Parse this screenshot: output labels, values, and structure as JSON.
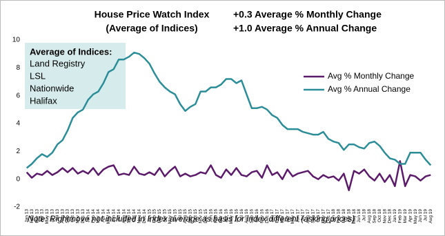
{
  "chart_data": {
    "type": "line",
    "title": "House Price Watch Index",
    "subtitle": "(Average of Indices)",
    "annotations": [
      {
        "text": "+0.3 Average % Monthly Change",
        "color": "#6a1b6e"
      },
      {
        "text": "+1.0 Average % Annual Change",
        "color": "#2b8d98"
      }
    ],
    "box": {
      "heading": "Average of Indices:",
      "items": [
        "Land Registry",
        "LSL",
        "Nationwide",
        "Halifax"
      ]
    },
    "note": "Note: Rightmove not included in Index average as basis for index different (asking prices)",
    "categories": [
      "Jan 13",
      "Feb 13",
      "Mar 13",
      "Apr 13",
      "May 13",
      "Jun 13",
      "Jul 13",
      "Aug 13",
      "Sep 13",
      "Oct 13",
      "Nov 13",
      "Dec 13",
      "Jan 14",
      "Feb 14",
      "Mar 14",
      "Apr 14",
      "May 14",
      "Jun 14",
      "Jul 14",
      "Aug 14",
      "Sep 14",
      "Oct 14",
      "Nov 14",
      "Dec 14",
      "Jan 15",
      "Feb 15",
      "Mar 15",
      "Apr 15",
      "May 15",
      "Jun 15",
      "Jul 15",
      "Aug 15",
      "Sep 15",
      "Oct 15",
      "Nov 15",
      "Dec 15",
      "Jan 16",
      "Feb 16",
      "Mar 16",
      "Apr 16",
      "May 16",
      "Jun 16",
      "Jul 16",
      "Aug 16",
      "Sep 16",
      "Oct 16",
      "Nov 16",
      "Dec 16",
      "Jan 17",
      "Feb 17",
      "Mar 17",
      "Apr 17",
      "May 17",
      "Jun 17",
      "Jul 17",
      "Aug 17",
      "Sep 17",
      "Oct 17",
      "Nov 17",
      "Dec 17",
      "Jan 18",
      "Feb 18",
      "Mar 18",
      "Apr 18",
      "May 18",
      "Jun 18",
      "Jul 18",
      "Aug 18",
      "Sep 18",
      "Oct 18",
      "Nov 18",
      "Dec 18",
      "Jan 19",
      "Feb 19",
      "Mar 19",
      "Apr 19",
      "May 19",
      "Jun 19",
      "Jul 19",
      "Aug 19"
    ],
    "series": [
      {
        "name": "Avg % Monthly Change",
        "color": "#5c1a6b",
        "values": [
          0.5,
          0.1,
          0.4,
          0.3,
          0.6,
          0.3,
          0.5,
          0.8,
          0.5,
          0.8,
          0.4,
          0.6,
          0.4,
          0.8,
          0.3,
          0.7,
          0.9,
          1.0,
          0.3,
          0.4,
          0.3,
          0.9,
          0.4,
          0.3,
          0.5,
          0.3,
          0.8,
          0.2,
          0.6,
          0.9,
          0.2,
          0.4,
          0.2,
          0.3,
          0.5,
          0.4,
          1.0,
          0.3,
          0.1,
          0.7,
          0.3,
          0.8,
          0.3,
          0.2,
          0.5,
          0.6,
          0.1,
          1.0,
          0.3,
          0.5,
          0.0,
          0.7,
          0.2,
          0.4,
          0.5,
          0.6,
          0.2,
          0.0,
          0.3,
          0.1,
          0.2,
          -0.1,
          0.4,
          -0.8,
          0.6,
          0.4,
          0.7,
          0.2,
          -0.1,
          0.4,
          -0.2,
          0.3,
          -0.5,
          1.3,
          -0.5,
          0.3,
          0.2,
          -0.1,
          0.2,
          0.3
        ]
      },
      {
        "name": "Avg % Annual Change",
        "color": "#2b8d98",
        "values": [
          0.8,
          1.1,
          1.5,
          1.8,
          1.6,
          1.9,
          2.5,
          2.8,
          3.5,
          4.4,
          4.8,
          5.0,
          5.7,
          6.1,
          6.3,
          6.9,
          7.7,
          7.9,
          8.6,
          8.6,
          8.8,
          9.1,
          9.0,
          8.7,
          8.3,
          7.6,
          7.0,
          6.6,
          6.3,
          6.1,
          5.4,
          4.9,
          5.2,
          5.4,
          6.3,
          6.3,
          6.6,
          6.6,
          6.8,
          7.2,
          7.2,
          6.9,
          7.1,
          6.1,
          5.1,
          5.1,
          5.2,
          5.0,
          4.6,
          4.4,
          3.9,
          3.6,
          3.6,
          3.6,
          3.4,
          3.3,
          3.2,
          3.2,
          3.4,
          2.9,
          2.7,
          2.6,
          2.1,
          2.5,
          2.5,
          2.3,
          2.2,
          2.6,
          2.7,
          2.4,
          1.9,
          1.5,
          1.4,
          1.1,
          1.1,
          1.9,
          1.9,
          1.9,
          1.4,
          1.0
        ]
      }
    ],
    "ylim": [
      -2,
      10
    ],
    "yticks": [
      -2,
      0,
      2,
      4,
      6,
      8,
      10
    ],
    "box_color": "#d6ecec",
    "legend": "right"
  }
}
